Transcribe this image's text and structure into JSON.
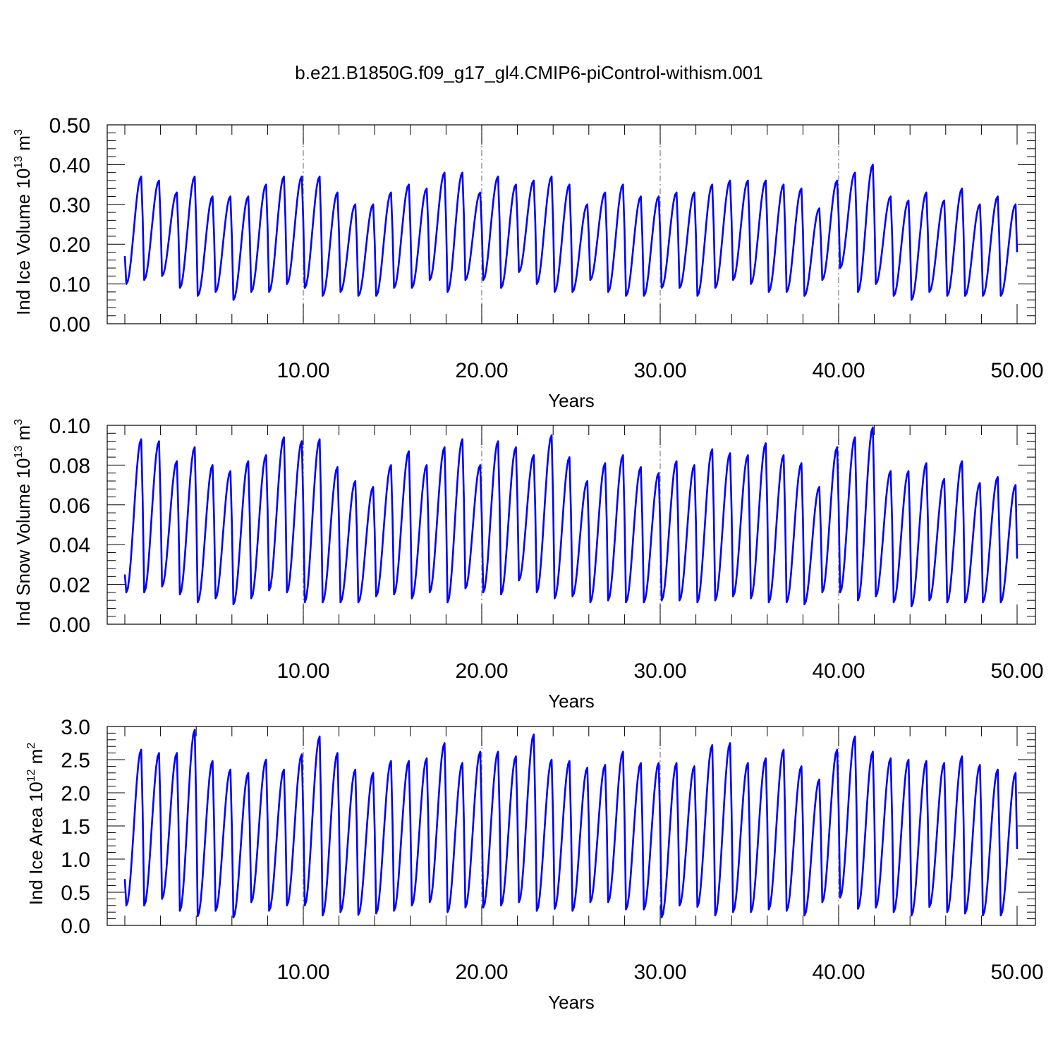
{
  "title": "b.e21.B1850G.f09_g17_gl4.CMIP6-piControl-withism.001",
  "line_color": "#0000ff",
  "grid_color": "#808080",
  "chart_data": [
    {
      "type": "line",
      "name": "ice-volume",
      "title": "",
      "ylabel_prefix": "Ind Ice Volume 10",
      "ylabel_exp": "13",
      "ylabel_suffix": " m",
      "ylabel_unit_exp": "3",
      "xlabel": "Years",
      "xlim": [
        0,
        50
      ],
      "ylim": [
        0,
        0.5
      ],
      "x_ticks": [
        10,
        20,
        30,
        40,
        50
      ],
      "x_tick_labels": [
        "10.00",
        "20.00",
        "30.00",
        "40.00",
        "50.00"
      ],
      "y_ticks": [
        0,
        0.1,
        0.2,
        0.3,
        0.4,
        0.5
      ],
      "y_tick_labels": [
        "0.00",
        "0.10",
        "0.20",
        "0.30",
        "0.40",
        "0.50"
      ],
      "grid": "vertical dashed at x = 10, 20, 30, 40",
      "series": [
        {
          "peaks": [
            0.37,
            0.36,
            0.33,
            0.37,
            0.32,
            0.32,
            0.32,
            0.35,
            0.37,
            0.37,
            0.37,
            0.33,
            0.3,
            0.3,
            0.33,
            0.35,
            0.34,
            0.38,
            0.38,
            0.33,
            0.37,
            0.35,
            0.36,
            0.37,
            0.35,
            0.3,
            0.33,
            0.35,
            0.32,
            0.32,
            0.33,
            0.33,
            0.35,
            0.36,
            0.36,
            0.36,
            0.35,
            0.34,
            0.29,
            0.36,
            0.38,
            0.4,
            0.32,
            0.31,
            0.33,
            0.31,
            0.34,
            0.3,
            0.32,
            0.3
          ],
          "troughs": [
            0.1,
            0.11,
            0.12,
            0.09,
            0.07,
            0.08,
            0.06,
            0.08,
            0.08,
            0.1,
            0.09,
            0.07,
            0.08,
            0.07,
            0.07,
            0.09,
            0.09,
            0.11,
            0.08,
            0.11,
            0.11,
            0.09,
            0.13,
            0.1,
            0.08,
            0.08,
            0.11,
            0.08,
            0.07,
            0.07,
            0.09,
            0.09,
            0.07,
            0.09,
            0.11,
            0.1,
            0.08,
            0.08,
            0.07,
            0.11,
            0.14,
            0.08,
            0.1,
            0.07,
            0.06,
            0.08,
            0.07,
            0.07,
            0.07,
            0.07
          ],
          "start": 0.17,
          "end": 0.18
        }
      ]
    },
    {
      "type": "line",
      "name": "snow-volume",
      "title": "",
      "ylabel_prefix": "Ind Snow Volume 10",
      "ylabel_exp": "13",
      "ylabel_suffix": " m",
      "ylabel_unit_exp": "3",
      "xlabel": "Years",
      "xlim": [
        0,
        50
      ],
      "ylim": [
        0,
        0.1
      ],
      "x_ticks": [
        10,
        20,
        30,
        40,
        50
      ],
      "x_tick_labels": [
        "10.00",
        "20.00",
        "30.00",
        "40.00",
        "50.00"
      ],
      "y_ticks": [
        0,
        0.02,
        0.04,
        0.06,
        0.08,
        0.1
      ],
      "y_tick_labels": [
        "0.00",
        "0.02",
        "0.04",
        "0.06",
        "0.08",
        "0.10"
      ],
      "grid": "vertical dashed at x = 10, 20, 30, 40",
      "series": [
        {
          "peaks": [
            0.093,
            0.092,
            0.082,
            0.089,
            0.08,
            0.077,
            0.082,
            0.085,
            0.094,
            0.092,
            0.093,
            0.079,
            0.072,
            0.069,
            0.08,
            0.087,
            0.08,
            0.089,
            0.093,
            0.08,
            0.092,
            0.089,
            0.085,
            0.095,
            0.084,
            0.072,
            0.081,
            0.085,
            0.079,
            0.076,
            0.082,
            0.08,
            0.088,
            0.086,
            0.085,
            0.091,
            0.085,
            0.081,
            0.069,
            0.089,
            0.094,
            0.099,
            0.077,
            0.077,
            0.081,
            0.073,
            0.082,
            0.071,
            0.074,
            0.07
          ],
          "troughs": [
            0.016,
            0.016,
            0.019,
            0.015,
            0.011,
            0.013,
            0.01,
            0.013,
            0.017,
            0.016,
            0.011,
            0.011,
            0.011,
            0.011,
            0.014,
            0.015,
            0.013,
            0.016,
            0.011,
            0.018,
            0.016,
            0.015,
            0.022,
            0.016,
            0.013,
            0.014,
            0.011,
            0.012,
            0.011,
            0.011,
            0.012,
            0.012,
            0.011,
            0.012,
            0.014,
            0.013,
            0.011,
            0.011,
            0.01,
            0.016,
            0.016,
            0.012,
            0.014,
            0.011,
            0.009,
            0.012,
            0.011,
            0.011,
            0.011,
            0.011
          ],
          "start": 0.025,
          "end": 0.033
        }
      ]
    },
    {
      "type": "line",
      "name": "ice-area",
      "title": "",
      "ylabel_prefix": "Ind Ice Area 10",
      "ylabel_exp": "12",
      "ylabel_suffix": " m",
      "ylabel_unit_exp": "2",
      "xlabel": "Years",
      "xlim": [
        0,
        50
      ],
      "ylim": [
        0,
        3.0
      ],
      "x_ticks": [
        10,
        20,
        30,
        40,
        50
      ],
      "x_tick_labels": [
        "10.00",
        "20.00",
        "30.00",
        "40.00",
        "50.00"
      ],
      "y_ticks": [
        0,
        0.5,
        1.0,
        1.5,
        2.0,
        2.5,
        3.0
      ],
      "y_tick_labels": [
        "0.0",
        "0.5",
        "1.0",
        "1.5",
        "2.0",
        "2.5",
        "3.0"
      ],
      "grid": "vertical dashed at x = 10, 20, 30, 40",
      "series": [
        {
          "peaks": [
            2.65,
            2.6,
            2.6,
            2.95,
            2.48,
            2.35,
            2.3,
            2.5,
            2.35,
            2.58,
            2.85,
            2.6,
            2.35,
            2.3,
            2.48,
            2.48,
            2.52,
            2.75,
            2.45,
            2.62,
            2.62,
            2.55,
            2.88,
            2.5,
            2.48,
            2.38,
            2.42,
            2.62,
            2.45,
            2.45,
            2.45,
            2.4,
            2.72,
            2.75,
            2.45,
            2.52,
            2.65,
            2.4,
            2.2,
            2.65,
            2.85,
            2.62,
            2.52,
            2.5,
            2.48,
            2.45,
            2.55,
            2.42,
            2.35,
            2.3
          ],
          "troughs": [
            0.3,
            0.3,
            0.4,
            0.22,
            0.14,
            0.22,
            0.12,
            0.35,
            0.22,
            0.3,
            0.3,
            0.15,
            0.2,
            0.16,
            0.18,
            0.22,
            0.3,
            0.35,
            0.2,
            0.27,
            0.27,
            0.3,
            0.35,
            0.22,
            0.25,
            0.22,
            0.35,
            0.35,
            0.24,
            0.24,
            0.12,
            0.3,
            0.28,
            0.15,
            0.2,
            0.2,
            0.24,
            0.22,
            0.15,
            0.35,
            0.42,
            0.25,
            0.27,
            0.2,
            0.15,
            0.28,
            0.2,
            0.18,
            0.15,
            0.15
          ],
          "start": 0.7,
          "end": 1.15
        }
      ]
    }
  ]
}
